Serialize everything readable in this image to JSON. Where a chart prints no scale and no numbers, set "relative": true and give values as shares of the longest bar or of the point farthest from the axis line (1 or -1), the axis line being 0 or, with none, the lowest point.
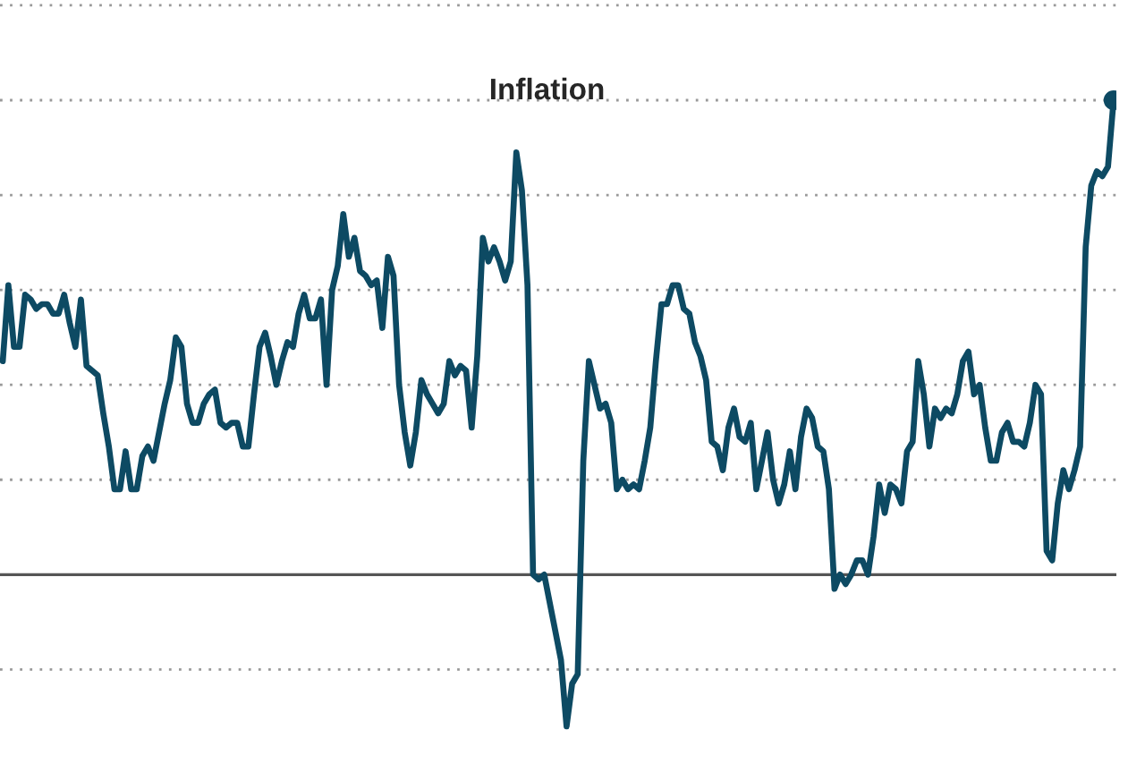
{
  "chart_data": {
    "type": "line",
    "title": "Inflation",
    "relative": true,
    "grid": "y",
    "line_style": "solid",
    "categories": [
      null,
      null,
      null,
      null,
      null,
      null,
      null,
      null,
      null,
      null,
      null,
      null,
      null,
      null,
      null,
      null,
      null,
      null,
      null,
      null,
      null,
      null,
      null,
      null,
      null,
      null,
      null,
      null,
      null,
      null,
      null,
      null,
      null,
      null,
      null,
      null,
      null,
      null,
      null,
      null,
      null,
      null,
      null,
      null,
      null,
      null,
      null,
      null,
      null,
      null,
      null,
      null,
      null,
      null,
      null,
      null,
      null,
      null,
      null,
      null,
      null,
      null,
      null,
      null,
      null,
      null,
      null,
      null,
      null,
      null,
      null,
      null,
      null,
      null,
      null,
      null,
      null,
      null,
      null,
      null,
      null,
      null,
      null,
      null,
      null,
      null,
      null,
      null,
      null,
      null,
      null,
      null,
      null,
      null,
      null,
      null,
      null,
      null,
      null,
      null,
      null,
      null,
      null,
      null,
      null,
      null,
      null,
      null,
      null,
      null,
      null,
      null,
      null,
      null,
      null,
      null,
      null,
      null,
      null,
      null,
      null,
      null,
      null,
      null,
      null,
      null,
      null,
      null,
      null,
      null,
      null,
      null,
      null,
      null,
      null,
      null,
      null,
      null,
      null,
      null,
      null,
      null,
      null,
      null,
      null,
      null,
      null,
      null,
      null,
      null,
      null,
      null,
      null,
      null,
      null,
      null,
      null,
      null,
      null,
      null,
      null,
      null,
      null,
      null,
      null,
      null,
      null,
      null,
      null,
      null,
      null,
      null,
      null,
      null,
      null,
      null,
      null,
      null,
      null,
      null,
      null,
      null,
      null,
      null,
      null,
      null,
      null,
      null,
      null,
      null,
      null,
      null,
      null,
      null,
      null,
      null,
      null,
      null,
      null,
      null
    ],
    "series": [
      {
        "color": "#0d4a63",
        "values": [
          0.45,
          0.61,
          0.48,
          0.48,
          0.59,
          0.58,
          0.56,
          0.57,
          0.57,
          0.55,
          0.55,
          0.59,
          0.53,
          0.48,
          0.58,
          0.44,
          0.43,
          0.42,
          0.34,
          0.27,
          0.18,
          0.18,
          0.26,
          0.18,
          0.18,
          0.25,
          0.27,
          0.24,
          0.3,
          0.36,
          0.41,
          0.5,
          0.48,
          0.36,
          0.32,
          0.32,
          0.36,
          0.38,
          0.39,
          0.32,
          0.31,
          0.32,
          0.32,
          0.27,
          0.27,
          0.38,
          0.48,
          0.51,
          0.46,
          0.4,
          0.45,
          0.49,
          0.48,
          0.55,
          0.59,
          0.54,
          0.54,
          0.58,
          0.4,
          0.6,
          0.65,
          0.76,
          0.67,
          0.71,
          0.64,
          0.63,
          0.61,
          0.62,
          0.52,
          0.67,
          0.63,
          0.4,
          0.3,
          0.23,
          0.3,
          0.41,
          0.38,
          0.36,
          0.34,
          0.36,
          0.45,
          0.42,
          0.44,
          0.43,
          0.31,
          0.46,
          0.71,
          0.66,
          0.69,
          0.66,
          0.62,
          0.66,
          0.89,
          0.81,
          0.61,
          0,
          -0.01,
          0,
          -0.06,
          -0.12,
          -0.18,
          -0.32,
          -0.23,
          -0.21,
          0.24,
          0.45,
          0.4,
          0.35,
          0.36,
          0.32,
          0.18,
          0.2,
          0.18,
          0.19,
          0.18,
          0.24,
          0.31,
          0.45,
          0.57,
          0.57,
          0.61,
          0.61,
          0.56,
          0.55,
          0.49,
          0.46,
          0.41,
          0.28,
          0.27,
          0.22,
          0.31,
          0.35,
          0.29,
          0.28,
          0.32,
          0.18,
          0.24,
          0.3,
          0.2,
          0.15,
          0.19,
          0.26,
          0.18,
          0.29,
          0.35,
          0.33,
          0.27,
          0.26,
          0.18,
          -0.03,
          0,
          -0.02,
          0,
          0.03,
          0.03,
          0,
          0.08,
          0.19,
          0.13,
          0.19,
          0.18,
          0.15,
          0.26,
          0.28,
          0.45,
          0.38,
          0.27,
          0.35,
          0.33,
          0.35,
          0.34,
          0.38,
          0.45,
          0.47,
          0.38,
          0.4,
          0.31,
          0.24,
          0.24,
          0.3,
          0.32,
          0.28,
          0.28,
          0.27,
          0.32,
          0.4,
          0.38,
          0.05,
          0.03,
          0.15,
          0.22,
          0.18,
          0.22,
          0.27,
          0.69,
          0.82,
          0.85,
          0.84,
          0.86,
          1
        ]
      }
    ],
    "ref_lines": [
      {
        "axis": "y",
        "value": 0,
        "color": "#555555",
        "line_style": "solid"
      }
    ]
  }
}
